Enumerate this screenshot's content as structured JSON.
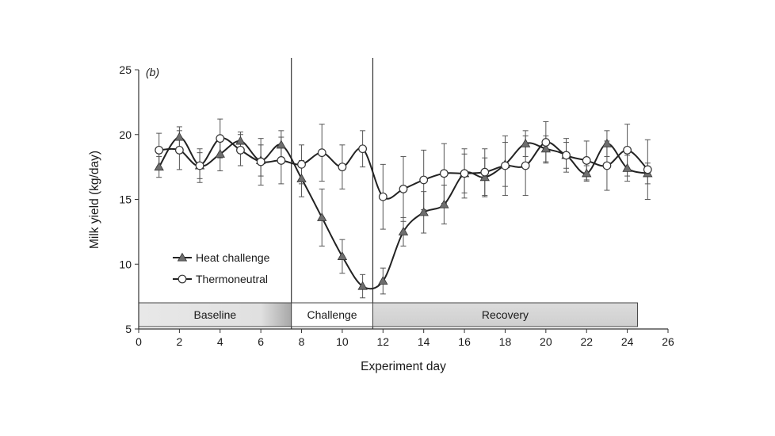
{
  "chart_data": {
    "type": "line",
    "panel_label": "(b)",
    "xlabel": "Experiment day",
    "ylabel": "Milk yield (kg/day)",
    "xlim": [
      0,
      26
    ],
    "ylim": [
      5,
      25
    ],
    "x_ticks": [
      "0",
      "2",
      "4",
      "6",
      "8",
      "10",
      "12",
      "14",
      "16",
      "18",
      "20",
      "22",
      "24",
      "26"
    ],
    "y_ticks": [
      "5",
      "10",
      "15",
      "20",
      "25"
    ],
    "grid": false,
    "legend_position": "lower-left",
    "phase_dividers": [
      7.5,
      11.5
    ],
    "phases": [
      {
        "label": "Baseline",
        "start": 0,
        "end": 7.5
      },
      {
        "label": "Challenge",
        "start": 7.5,
        "end": 11.5
      },
      {
        "label": "Recovery",
        "start": 11.5,
        "end": 24.5
      }
    ],
    "series": [
      {
        "name": "Heat challenge",
        "marker": "triangle",
        "color": "#6e6e6e",
        "x": [
          1,
          2,
          3,
          4,
          5,
          6,
          7,
          8,
          9,
          10,
          11,
          12,
          13,
          14,
          15,
          16,
          17,
          18,
          19,
          20,
          21,
          22,
          23,
          24,
          25
        ],
        "y": [
          17.5,
          19.8,
          17.6,
          18.5,
          19.5,
          18.0,
          19.2,
          16.6,
          13.6,
          10.6,
          8.3,
          8.7,
          12.5,
          14.0,
          14.6,
          17.0,
          16.7,
          17.7,
          19.3,
          18.9,
          18.4,
          17.0,
          19.3,
          17.4,
          17.0
        ],
        "err": [
          0.8,
          0.8,
          1.0,
          1.3,
          0.7,
          1.2,
          1.1,
          1.4,
          2.2,
          1.3,
          0.9,
          1.0,
          1.1,
          1.6,
          1.5,
          1.5,
          1.5,
          1.7,
          1.0,
          1.0,
          1.0,
          0.6,
          1.0,
          1.0,
          0.8
        ]
      },
      {
        "name": "Thermoneutral",
        "marker": "circle",
        "color": "#ffffff",
        "x": [
          1,
          2,
          3,
          4,
          5,
          6,
          7,
          8,
          9,
          10,
          11,
          12,
          13,
          14,
          15,
          16,
          17,
          18,
          19,
          20,
          21,
          22,
          23,
          24,
          25
        ],
        "y": [
          18.8,
          18.8,
          17.6,
          19.7,
          18.8,
          17.9,
          18.0,
          17.7,
          18.6,
          17.5,
          18.9,
          15.2,
          15.8,
          16.5,
          17.0,
          17.0,
          17.1,
          17.6,
          17.6,
          19.4,
          18.4,
          18.0,
          17.6,
          18.8,
          17.3
        ],
        "err": [
          1.3,
          1.5,
          1.3,
          1.5,
          1.2,
          1.8,
          1.8,
          1.5,
          2.2,
          1.7,
          1.4,
          2.5,
          2.5,
          2.3,
          2.3,
          1.9,
          1.8,
          2.3,
          2.3,
          1.6,
          1.3,
          1.5,
          1.9,
          2.0,
          2.3
        ]
      }
    ]
  }
}
